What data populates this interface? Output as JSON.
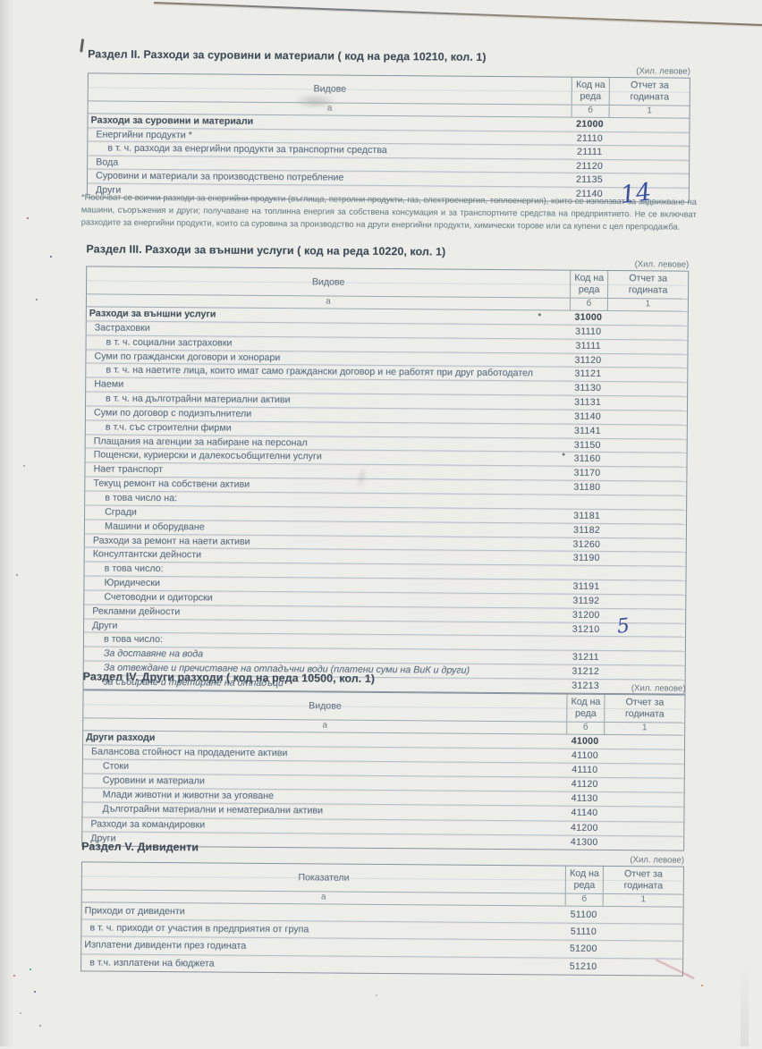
{
  "sections": [
    {
      "id": "razdel-2",
      "title": "Раздел II. Разходи за суровини и материали ( код на реда 10210, кол. 1)",
      "unit": "(Хил. левове)",
      "columns": {
        "types": "Видове",
        "code": "Код на реда",
        "report": "Отчет за годината"
      },
      "sub": {
        "a": "а",
        "b": "б",
        "one": "1"
      },
      "rows": [
        {
          "label": "Разходи за суровини и материали",
          "code": "21000",
          "bold": true,
          "indent": 0
        },
        {
          "label": "Енергийни продукти *",
          "code": "21110",
          "indent": 1
        },
        {
          "label": "в т. ч. разходи за енергийни продукти за транспортни средства",
          "code": "21111",
          "indent": 2
        },
        {
          "label": "Вода",
          "code": "21120",
          "indent": 1
        },
        {
          "label": "Суровини и материали за производствено потребление",
          "code": "21135",
          "indent": 1
        },
        {
          "label": "Други",
          "code": "21140",
          "indent": 1,
          "value": "14"
        }
      ],
      "footnote": "*Посочват се всички разходи за енергийни продукти (въглища, петролни продукти, газ, електроенергия, топлоенергия), които се използват за задвижване на машини, съоръжения и други; получаване на топлинна енергия за собствена консумация и за транспортните средства на предприятието. Не се включват разходите за енергийни продукти, които са суровина за производство на други енергийни продукти, химически торове или са купени с цел препродажба."
    },
    {
      "id": "razdel-3",
      "title": "Раздел III. Разходи за външни услуги ( код на реда 10220, кол. 1)",
      "unit": "(Хил. левове)",
      "columns": {
        "types": "Видове",
        "code": "Код на реда",
        "report": "Отчет за годината"
      },
      "sub": {
        "a": "а",
        "b": "б",
        "one": "1"
      },
      "rows": [
        {
          "label": "Разходи за външни услуги",
          "code": "31000",
          "bold": true,
          "indent": 0
        },
        {
          "label": "Застраховки",
          "code": "31110",
          "indent": 1
        },
        {
          "label": "в т. ч. социални застраховки",
          "code": "31111",
          "indent": 2
        },
        {
          "label": "Суми по граждански договори и хонорари",
          "code": "31120",
          "indent": 1
        },
        {
          "label": "в т. ч. на наетите лица, които имат само граждански договор и не работят при друг работодател",
          "code": "31121",
          "indent": 2
        },
        {
          "label": "Наеми",
          "code": "31130",
          "indent": 1
        },
        {
          "label": "в т. ч. на дълготрайни материални активи",
          "code": "31131",
          "indent": 2
        },
        {
          "label": "Суми по договор с подизпълнители",
          "code": "31140",
          "indent": 1
        },
        {
          "label": "в т.ч. със строителни фирми",
          "code": "31141",
          "indent": 2
        },
        {
          "label": "Плащания на агенции за набиране на персонал",
          "code": "31150",
          "indent": 1
        },
        {
          "label": "Пощенски, куриерски и далекосъобщителни услуги",
          "code": "31160",
          "indent": 1
        },
        {
          "label": "Нает транспорт",
          "code": "31170",
          "indent": 1
        },
        {
          "label": "Текущ ремонт на собствени активи",
          "code": "31180",
          "indent": 1
        },
        {
          "label": "в това число на:",
          "code": "",
          "indent": 2
        },
        {
          "label": "Сгради",
          "code": "31181",
          "indent": 2
        },
        {
          "label": "Машини и оборудване",
          "code": "31182",
          "indent": 2
        },
        {
          "label": "Разходи за ремонт на наети активи",
          "code": "31260",
          "indent": 1
        },
        {
          "label": "Консултантски дейности",
          "code": "31190",
          "indent": 1
        },
        {
          "label": "в това число:",
          "code": "",
          "indent": 2
        },
        {
          "label": "Юридически",
          "code": "31191",
          "indent": 2
        },
        {
          "label": "Счетоводни и одиторски",
          "code": "31192",
          "indent": 2
        },
        {
          "label": "Рекламни дейности",
          "code": "31200",
          "indent": 1
        },
        {
          "label": "Други",
          "code": "31210",
          "indent": 1,
          "value": "5"
        },
        {
          "label": "в това число:",
          "code": "",
          "indent": 2
        },
        {
          "label": "За доставяне на вода",
          "code": "31211",
          "indent": 2,
          "italic": true
        },
        {
          "label": "За отвеждане и пречистване на отпадъчни води (платени суми на ВиК и други)",
          "code": "31212",
          "indent": 2,
          "italic": true
        },
        {
          "label": "за събиране и третиране на отпадъци",
          "code": "31213",
          "indent": 2,
          "italic": true
        }
      ],
      "footnote": ""
    },
    {
      "id": "razdel-4",
      "title": "Раздел IV. Други разходи ( код на реда 10500, кол. 1)",
      "unit": "(Хил. левове)",
      "columns": {
        "types": "Видове",
        "code": "Код на реда",
        "report": "Отчет за годината"
      },
      "sub": {
        "a": "а",
        "b": "б",
        "one": "1"
      },
      "rows": [
        {
          "label": "Други разходи",
          "code": "41000",
          "bold": true,
          "indent": 0
        },
        {
          "label": "Балансова стойност на продадените активи",
          "code": "41100",
          "indent": 1
        },
        {
          "label": "Стоки",
          "code": "41110",
          "indent": 2
        },
        {
          "label": "Суровини и материали",
          "code": "41120",
          "indent": 2
        },
        {
          "label": "Млади животни и животни за угояване",
          "code": "41130",
          "indent": 2
        },
        {
          "label": "Дълготрайни материални и нематериални активи",
          "code": "41140",
          "indent": 2
        },
        {
          "label": "Разходи за командировки",
          "code": "41200",
          "indent": 1
        },
        {
          "label": "Други",
          "code": "41300",
          "indent": 1
        }
      ],
      "footnote": ""
    },
    {
      "id": "razdel-5",
      "title": "Раздел V. Дивиденти",
      "unit": "(Хил. левове)",
      "columns": {
        "types": "Показатели",
        "code": "Код на реда",
        "report": "Отчет за годината"
      },
      "sub": {
        "a": "а",
        "b": "б",
        "one": "1"
      },
      "rows": [
        {
          "label": "Приходи от дивиденти",
          "code": "51100",
          "indent": 0
        },
        {
          "label": "в т. ч. приходи от участия в предприятия от група",
          "code": "51110",
          "indent": 1
        },
        {
          "label": "Изплатени дивиденти през годината",
          "code": "51200",
          "indent": 0
        },
        {
          "label": "в т.ч. изплатени на бюджета",
          "code": "51210",
          "indent": 1
        }
      ],
      "footnote": ""
    }
  ]
}
